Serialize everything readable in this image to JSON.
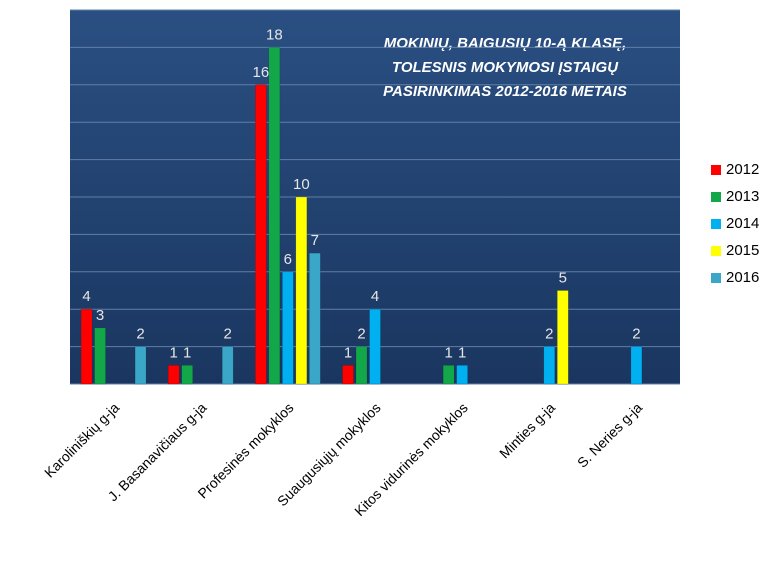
{
  "chart_data": {
    "type": "bar",
    "title_lines": [
      "MOKINIŲ, BAIGUSIŲ 10-Ą KLASĘ,",
      "TOLESNIS MOKYMOSI ĮSTAIGŲ",
      "PASIRINKIMAS  2012-2016 METAIS"
    ],
    "categories": [
      "Karoliniškių g-ja",
      "J. Basanavičiaus g-ja",
      "Profesinės mokyklos",
      "Suaugusiųjų mokyklos",
      "Kitos vidurinės mokyklos",
      "Minties g-ja",
      "S. Neries g-ja"
    ],
    "series": [
      {
        "name": "2012",
        "color": "#ff0000",
        "values": [
          4,
          1,
          16,
          1,
          null,
          null,
          null
        ]
      },
      {
        "name": "2013",
        "color": "#12a84a",
        "values": [
          3,
          1,
          18,
          2,
          1,
          null,
          null
        ]
      },
      {
        "name": "2014",
        "color": "#00b0f0",
        "values": [
          null,
          null,
          6,
          4,
          1,
          2,
          2
        ]
      },
      {
        "name": "2015",
        "color": "#ffff00",
        "values": [
          null,
          null,
          10,
          null,
          null,
          5,
          null
        ]
      },
      {
        "name": "2016",
        "color": "#3aa6c8",
        "values": [
          2,
          2,
          7,
          null,
          null,
          null,
          null
        ]
      }
    ],
    "ylim": [
      0,
      20
    ],
    "yticks": [
      0,
      2,
      4,
      6,
      8,
      10,
      12,
      14,
      16,
      18,
      20
    ],
    "grid": true,
    "legend": "right"
  }
}
